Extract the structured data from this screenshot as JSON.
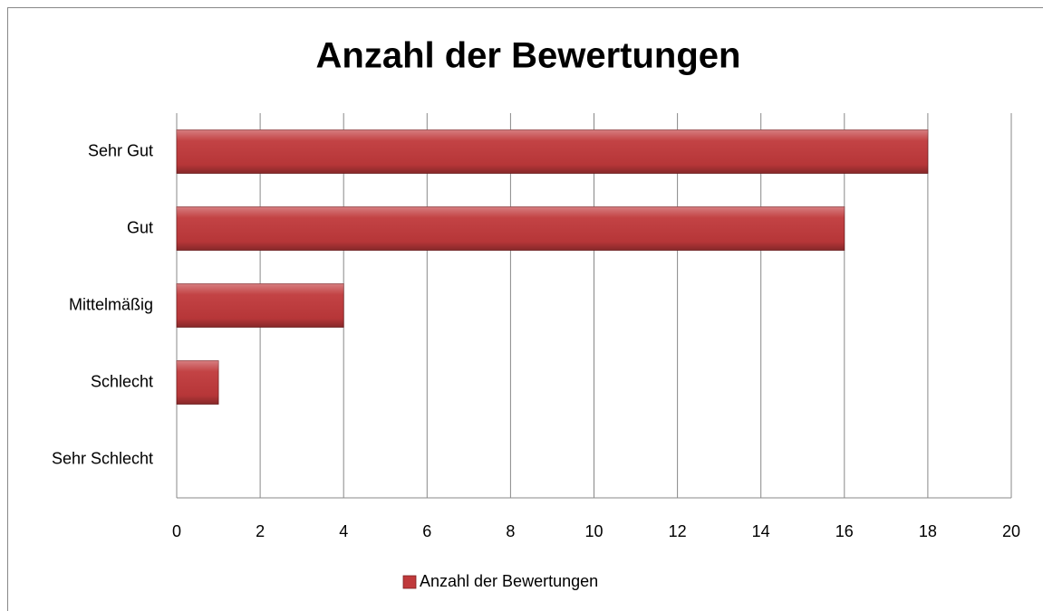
{
  "chart_data": {
    "type": "bar",
    "orientation": "horizontal",
    "title": "Anzahl der Bewertungen",
    "categories": [
      "Sehr Gut",
      "Gut",
      "Mittelmäßig",
      "Schlecht",
      "Sehr Schlecht"
    ],
    "series": [
      {
        "name": "Anzahl der Bewertungen",
        "color": "#c0393b",
        "values": [
          18,
          16,
          4,
          1,
          0
        ]
      }
    ],
    "xlim": [
      0,
      20
    ],
    "xticks": [
      0,
      2,
      4,
      6,
      8,
      10,
      12,
      14,
      16,
      18,
      20
    ],
    "grid": true,
    "legend": "bottom"
  }
}
